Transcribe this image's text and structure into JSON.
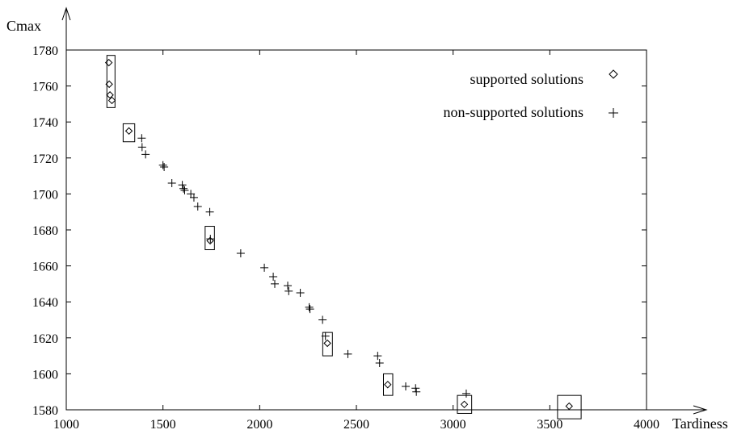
{
  "chart_data": {
    "type": "scatter",
    "xlabel": "Tardiness",
    "ylabel": "Cmax",
    "xlim": [
      1000,
      4000
    ],
    "ylim": [
      1580,
      1780
    ],
    "xticks": [
      "1000",
      "1500",
      "2000",
      "2500",
      "3000",
      "3500",
      "4000"
    ],
    "yticks": [
      "1580",
      "1600",
      "1620",
      "1640",
      "1660",
      "1680",
      "1700",
      "1720",
      "1740",
      "1760",
      "1780"
    ],
    "legend_position": "top-right",
    "series": [
      {
        "name": "supported solutions",
        "marker": "diamond",
        "points": [
          [
            1220,
            1773
          ],
          [
            1222,
            1761
          ],
          [
            1226,
            1755
          ],
          [
            1236,
            1752
          ],
          [
            1324,
            1735
          ],
          [
            1744,
            1674
          ],
          [
            2350,
            1617
          ],
          [
            2662,
            1594
          ],
          [
            3058,
            1583
          ],
          [
            3600,
            1582
          ]
        ]
      },
      {
        "name": "non-supported solutions",
        "marker": "plus",
        "points": [
          [
            1390,
            1731
          ],
          [
            1392,
            1726
          ],
          [
            1410,
            1722
          ],
          [
            1500,
            1716
          ],
          [
            1506,
            1715
          ],
          [
            1546,
            1706
          ],
          [
            1600,
            1705
          ],
          [
            1606,
            1703
          ],
          [
            1612,
            1702
          ],
          [
            1644,
            1700
          ],
          [
            1660,
            1698
          ],
          [
            1680,
            1693
          ],
          [
            1742,
            1690
          ],
          [
            1745,
            1675
          ],
          [
            1902,
            1667
          ],
          [
            2024,
            1659
          ],
          [
            2070,
            1654
          ],
          [
            2078,
            1650
          ],
          [
            2145,
            1649
          ],
          [
            2150,
            1646
          ],
          [
            2210,
            1645
          ],
          [
            2256,
            1637
          ],
          [
            2260,
            1636
          ],
          [
            2325,
            1630
          ],
          [
            2340,
            1621
          ],
          [
            2456,
            1611
          ],
          [
            2610,
            1610
          ],
          [
            2620,
            1606
          ],
          [
            2755,
            1593
          ],
          [
            2806,
            1592
          ],
          [
            2810,
            1590
          ],
          [
            3068,
            1589
          ]
        ]
      }
    ],
    "clusters": [
      {
        "x": [
          1210,
          1252
        ],
        "y": [
          1748,
          1777
        ]
      },
      {
        "x": [
          1294,
          1354
        ],
        "y": [
          1729,
          1739
        ]
      },
      {
        "x": [
          1718,
          1766
        ],
        "y": [
          1669,
          1682
        ]
      },
      {
        "x": [
          2326,
          2376
        ],
        "y": [
          1610,
          1623
        ]
      },
      {
        "x": [
          2640,
          2688
        ],
        "y": [
          1588,
          1600
        ]
      },
      {
        "x": [
          3022,
          3096
        ],
        "y": [
          1578,
          1588
        ]
      },
      {
        "x": [
          3540,
          3662
        ],
        "y": [
          1575,
          1588
        ]
      }
    ]
  }
}
